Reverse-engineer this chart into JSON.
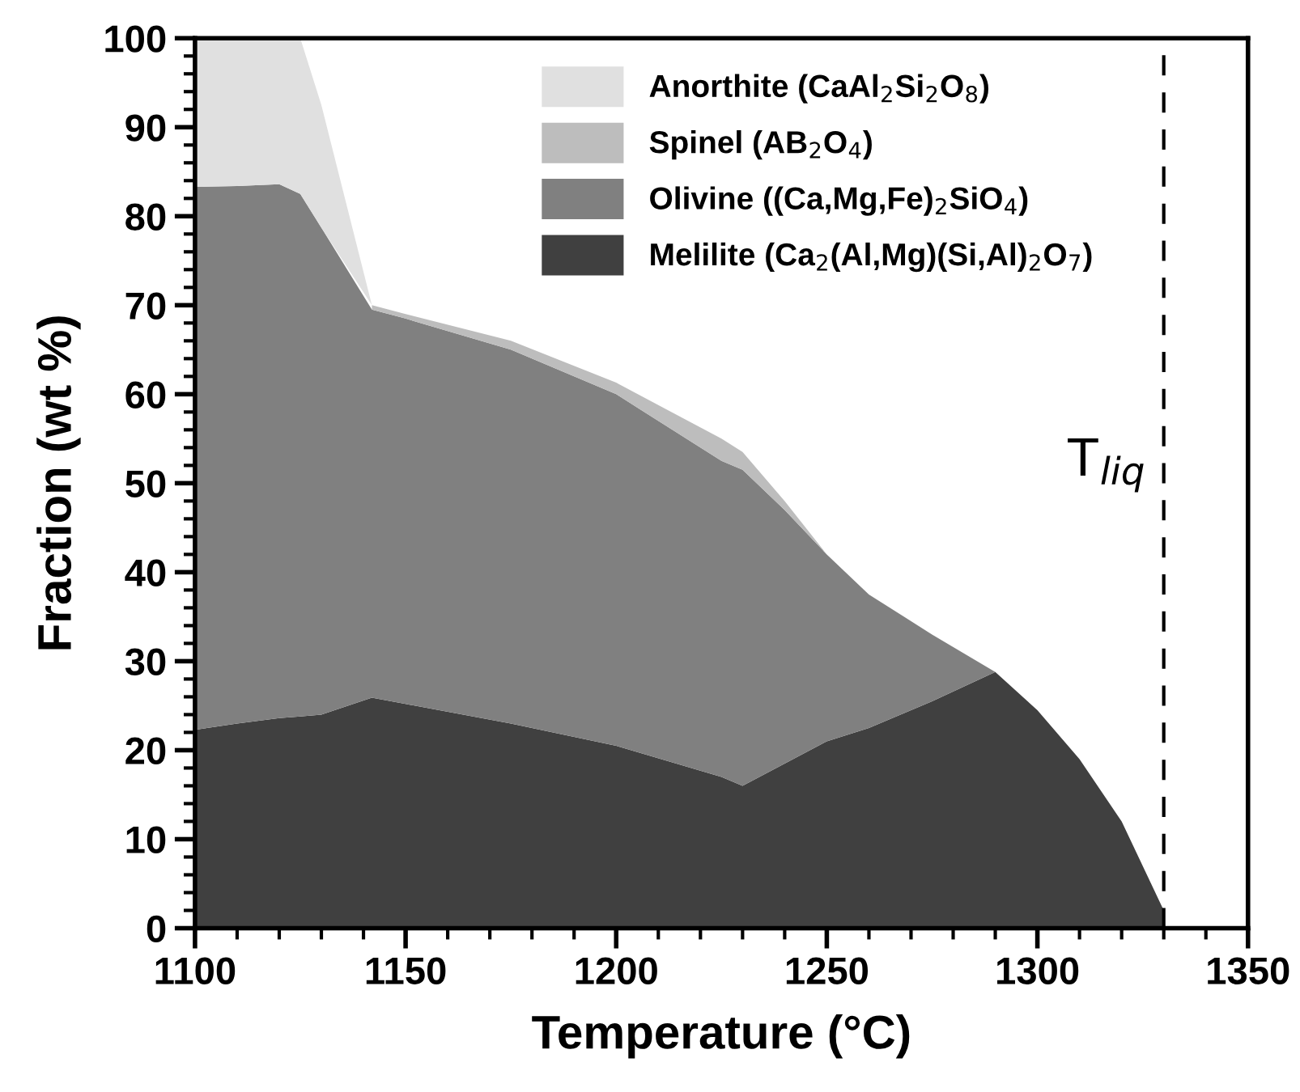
{
  "chart_data": {
    "type": "area",
    "stacked": true,
    "xlabel": "Temperature (°C)",
    "ylabel": "Fraction (wt %)",
    "x": [
      1100,
      1110,
      1120,
      1125,
      1130,
      1142,
      1150,
      1175,
      1200,
      1225,
      1230,
      1240,
      1250,
      1260,
      1275,
      1290,
      1300,
      1310,
      1320,
      1330
    ],
    "series": [
      {
        "name": "Melilite (Ca$_{2}$(Al,Mg)(Si,Al)$_{2}$O$_{7}$)",
        "color": "#404040",
        "values": [
          22.3,
          23,
          23.6,
          23.8,
          24,
          25.9,
          25.2,
          23,
          20.5,
          17,
          16,
          18.5,
          21,
          22.5,
          25.5,
          28.8,
          24.5,
          19,
          12,
          2
        ]
      },
      {
        "name": "Olivine ((Ca,Mg,Fe)$_{2}$SiO$_{4}$)",
        "color": "#808080",
        "values": [
          61,
          60.4,
          60,
          58.7,
          54.7,
          43.6,
          43.3,
          42,
          39.5,
          35.5,
          35.5,
          28.5,
          21,
          15,
          7.5,
          0,
          null,
          null,
          null,
          null
        ]
      },
      {
        "name": "Spinel (AB$_{2}$O$_{4}$)",
        "color": "#bdbdbd",
        "values": [
          null,
          null,
          null,
          null,
          null,
          0.5,
          0.5,
          1,
          1.3,
          2.5,
          2,
          1,
          0,
          null,
          null,
          null,
          null,
          null,
          null,
          null
        ]
      },
      {
        "name": "Anorthite (CaAl$_{2}$Si$_{2}$O$_{8}$)",
        "color": "#e0e0e0",
        "values": [
          16.7,
          16.6,
          16.4,
          17.5,
          13.8,
          0,
          null,
          null,
          null,
          null,
          null,
          null,
          null,
          null,
          null,
          null,
          null,
          null,
          null,
          null
        ]
      }
    ],
    "ref_lines": [
      {
        "axis": "x",
        "value": 1330,
        "label": "T$_{liq}$",
        "color": "#000000",
        "line_style": "dashed"
      }
    ],
    "xlim": [
      1100,
      1350
    ],
    "xticks": [
      1100,
      1150,
      1200,
      1250,
      1300,
      1350
    ],
    "ylim": [
      0,
      100
    ],
    "yticks": [
      0,
      10,
      20,
      30,
      40,
      50,
      60,
      70,
      80,
      90,
      100
    ],
    "legend": "top right",
    "grid": false
  }
}
